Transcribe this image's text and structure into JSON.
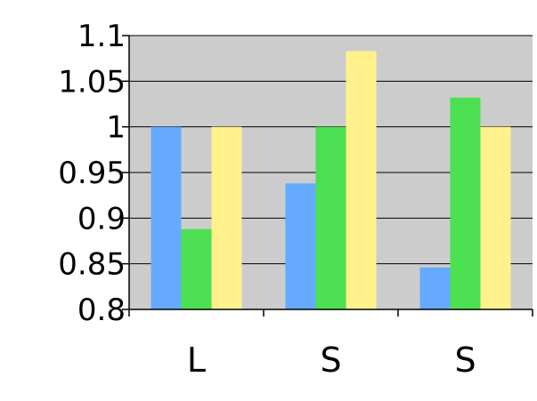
{
  "chart_data": {
    "type": "bar",
    "categories": [
      "L",
      "S",
      "S"
    ],
    "series": [
      {
        "values": [
          1.0,
          0.938,
          0.846
        ],
        "color": "#66aaff"
      },
      {
        "values": [
          0.888,
          1.0,
          1.032
        ],
        "color": "#4ce052"
      },
      {
        "values": [
          1.0,
          1.083,
          1.0
        ],
        "color": "#fff28c"
      }
    ],
    "ylim": [
      0.8,
      1.1
    ],
    "yticks": [
      "0.8",
      "0.85",
      "0.9",
      "0.95",
      "1",
      "1.05",
      "1.1"
    ],
    "title": "",
    "xlabel": "",
    "ylabel": "",
    "grid": true,
    "plot_background": "#cccccc",
    "grid_color": "#000000",
    "legend": "none"
  }
}
